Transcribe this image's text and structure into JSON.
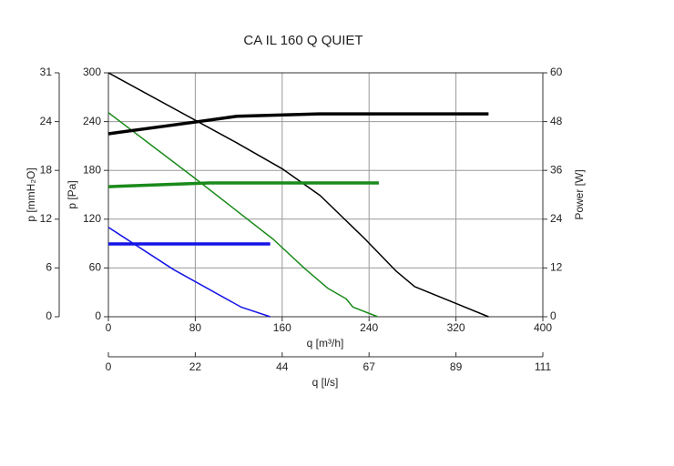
{
  "chart_data": {
    "type": "line",
    "title": "CA IL 160 Q QUIET",
    "xlabel": "q [m³/h]",
    "xlabel2": "q [l/s]",
    "ylabel": "p [Pa]",
    "ylabel2": "p [mmH₂O]",
    "y2label": "Power [W]",
    "xlim": [
      0,
      400
    ],
    "xticks": [
      0,
      80,
      160,
      240,
      320,
      400
    ],
    "x2ticks": [
      {
        "value": 0,
        "label": "0"
      },
      {
        "value": 80,
        "label": "22"
      },
      {
        "value": 160,
        "label": "44"
      },
      {
        "value": 240,
        "label": "67"
      },
      {
        "value": 320,
        "label": "89"
      },
      {
        "value": 400,
        "label": "111"
      }
    ],
    "ylim": [
      0,
      300
    ],
    "yticks": [
      0,
      60,
      120,
      180,
      240,
      300
    ],
    "yticks_mm": [
      {
        "value": 0,
        "label": "0"
      },
      {
        "value": 60,
        "label": "6"
      },
      {
        "value": 120,
        "label": "12"
      },
      {
        "value": 180,
        "label": "18"
      },
      {
        "value": 240,
        "label": "24"
      },
      {
        "value": 300,
        "label": "31"
      }
    ],
    "y2lim": [
      0,
      60
    ],
    "y2ticks": [
      0,
      12,
      24,
      36,
      48,
      60
    ],
    "grid": true,
    "series": [
      {
        "color": "#000000",
        "width": 1.5,
        "x": [
          0,
          118,
          160,
          195,
          236,
          265,
          282,
          350
        ],
        "values": [
          300,
          214,
          182,
          149,
          96,
          56,
          37,
          0
        ]
      },
      {
        "color": "#1a8a1a",
        "width": 1.5,
        "x": [
          0,
          79,
          152,
          181,
          202,
          219,
          225,
          248
        ],
        "values": [
          251,
          171,
          95,
          59,
          35,
          22,
          12,
          0
        ]
      },
      {
        "color": "#1414e6",
        "width": 1.5,
        "x": [
          0,
          60,
          122,
          149
        ],
        "values": [
          110,
          58,
          12,
          0
        ]
      },
      {
        "color": "#000000",
        "width": 3.5,
        "axis": "y2",
        "x": [
          0,
          80,
          118,
          194,
          350
        ],
        "values": [
          45,
          47.9,
          49.3,
          49.9,
          49.9
        ]
      },
      {
        "color": "#1a8a1a",
        "width": 3.5,
        "axis": "y2",
        "x": [
          0,
          93,
          249
        ],
        "values": [
          32,
          32.9,
          32.9
        ]
      },
      {
        "color": "#1414e6",
        "width": 3.5,
        "axis": "y2",
        "x": [
          0,
          149
        ],
        "values": [
          17.9,
          17.9
        ]
      }
    ]
  }
}
